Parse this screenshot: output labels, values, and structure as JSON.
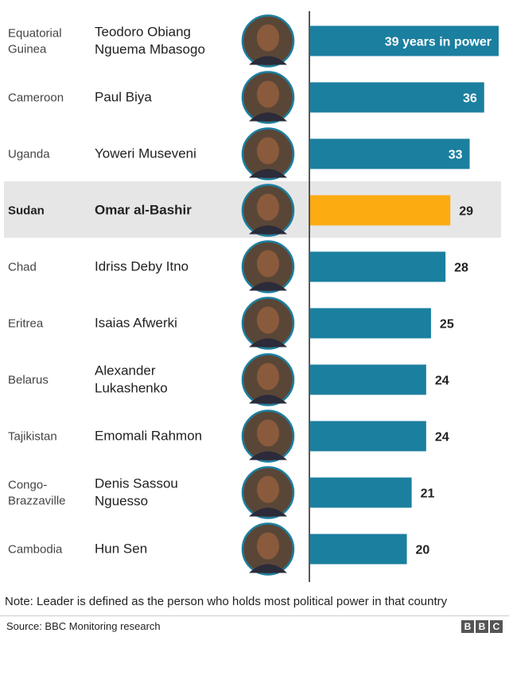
{
  "chart_data": {
    "type": "bar",
    "orientation": "horizontal",
    "value_suffix_first": " years in power",
    "highlight_color": "#fcab10",
    "bar_color": "#1b7f9f",
    "highlight_bg": "#e6e6e6",
    "xlim": [
      0,
      39
    ],
    "rows": [
      {
        "country": [
          "Equatorial",
          "Guinea"
        ],
        "leader": [
          "Teodoro Obiang",
          "Nguema Mbasogo"
        ],
        "value": 39,
        "highlight": false
      },
      {
        "country": [
          "Cameroon"
        ],
        "leader": [
          "Paul Biya"
        ],
        "value": 36,
        "highlight": false
      },
      {
        "country": [
          "Uganda"
        ],
        "leader": [
          "Yoweri Museveni"
        ],
        "value": 33,
        "highlight": false
      },
      {
        "country": [
          "Sudan"
        ],
        "leader": [
          "Omar al-Bashir"
        ],
        "value": 29,
        "highlight": true
      },
      {
        "country": [
          "Chad"
        ],
        "leader": [
          "Idriss Deby Itno"
        ],
        "value": 28,
        "highlight": false
      },
      {
        "country": [
          "Eritrea"
        ],
        "leader": [
          "Isaias Afwerki"
        ],
        "value": 25,
        "highlight": false
      },
      {
        "country": [
          "Belarus"
        ],
        "leader": [
          "Alexander",
          "Lukashenko"
        ],
        "value": 24,
        "highlight": false
      },
      {
        "country": [
          "Tajikistan"
        ],
        "leader": [
          "Emomali Rahmon"
        ],
        "value": 24,
        "highlight": false
      },
      {
        "country": [
          "Congo-",
          "Brazzaville"
        ],
        "leader": [
          "Denis Sassou",
          "Nguesso"
        ],
        "value": 21,
        "highlight": false
      },
      {
        "country": [
          "Cambodia"
        ],
        "leader": [
          "Hun Sen"
        ],
        "value": 20,
        "highlight": false
      }
    ]
  },
  "footer": {
    "note": "Note: Leader is defined as the person who holds most political power in that country",
    "source": "Source: BBC Monitoring research",
    "logo": [
      "B",
      "B",
      "C"
    ]
  }
}
